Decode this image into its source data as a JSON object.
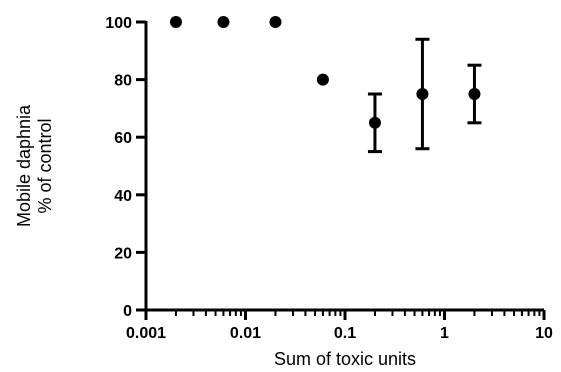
{
  "chart_data": {
    "type": "scatter",
    "xscale": "log",
    "xlim": [
      0.001,
      10
    ],
    "ylim": [
      0,
      100
    ],
    "xlabel": "Sum of toxic units",
    "ylabel": [
      "Mobile daphnia",
      "% of control"
    ],
    "x_ticks": [
      {
        "value": 0.001,
        "label": "0.001"
      },
      {
        "value": 0.01,
        "label": "0.01"
      },
      {
        "value": 0.1,
        "label": "0.1"
      },
      {
        "value": 1,
        "label": "1"
      },
      {
        "value": 10,
        "label": "10"
      }
    ],
    "y_ticks": [
      {
        "value": 0,
        "label": "0"
      },
      {
        "value": 20,
        "label": "20"
      },
      {
        "value": 40,
        "label": "40"
      },
      {
        "value": 60,
        "label": "60"
      },
      {
        "value": 80,
        "label": "80"
      },
      {
        "value": 100,
        "label": "100"
      }
    ],
    "grid": false,
    "marker_color": "#000000",
    "points": [
      {
        "x": 0.002,
        "y": 100
      },
      {
        "x": 0.006,
        "y": 100
      },
      {
        "x": 0.02,
        "y": 100
      },
      {
        "x": 0.06,
        "y": 80
      },
      {
        "x": 0.2,
        "y": 65,
        "err_low": 55,
        "err_high": 75
      },
      {
        "x": 0.6,
        "y": 75,
        "err_low": 56,
        "err_high": 94
      },
      {
        "x": 2,
        "y": 75,
        "err_low": 65,
        "err_high": 85
      }
    ]
  }
}
